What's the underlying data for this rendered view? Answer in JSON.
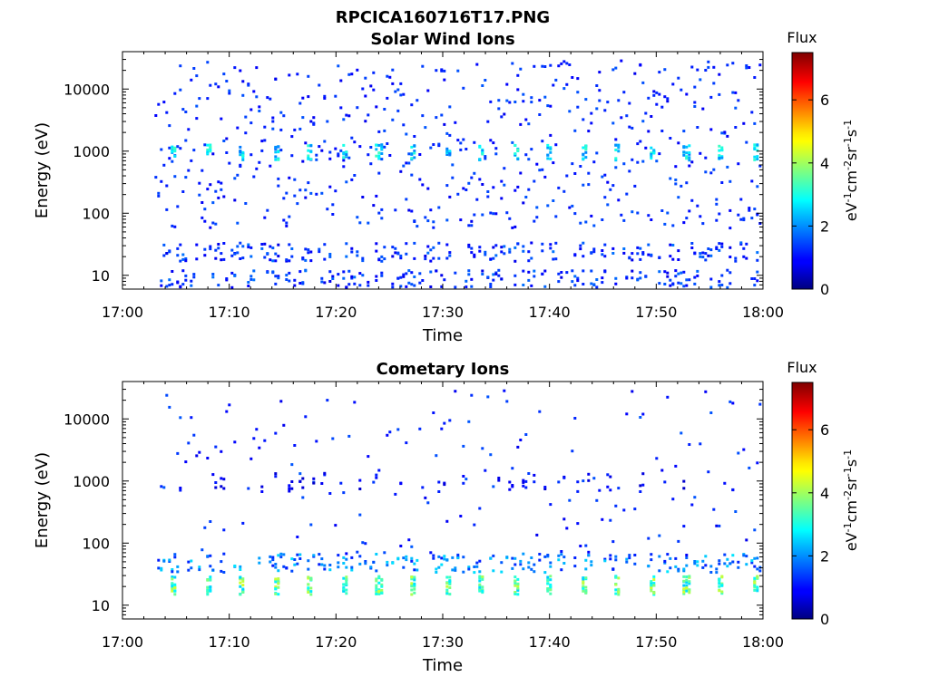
{
  "figure": {
    "title": "RPCICA160716T17.PNG"
  },
  "colors": {
    "background": "#ffffff",
    "axis": "#000000",
    "colormap": "jet"
  },
  "chart_data": [
    {
      "type": "heatmap",
      "title": "Solar Wind Ions",
      "xlabel": "Time",
      "ylabel": "Energy (eV)",
      "x_ticks": [
        "17:00",
        "17:10",
        "17:20",
        "17:30",
        "17:40",
        "17:50",
        "18:00"
      ],
      "x_range_minutes": [
        0,
        60
      ],
      "y_scale": "log",
      "y_range": [
        6,
        40000
      ],
      "y_ticks": [
        10,
        100,
        1000,
        10000
      ],
      "y_tick_labels": [
        "10",
        "100",
        "1000",
        "10000"
      ],
      "data_start_minute": 3,
      "sweep_period_minutes": 3.2,
      "features": [
        {
          "band": "peak",
          "energy_eV": 1000,
          "flux": 3.0
        },
        {
          "band": "low",
          "energy_eV": 25,
          "flux": 1.5
        },
        {
          "band": "low",
          "energy_eV": 9,
          "flux": 1.5
        }
      ],
      "colorbar": {
        "label": "Flux",
        "units": "eV-1cm-2sr-1s-1",
        "range": [
          0,
          7.5
        ],
        "ticks": [
          0,
          2,
          4,
          6
        ],
        "tick_labels": [
          "0",
          "2",
          "4",
          "6"
        ]
      },
      "grid": false
    },
    {
      "type": "heatmap",
      "title": "Cometary Ions",
      "xlabel": "Time",
      "ylabel": "Energy (eV)",
      "x_ticks": [
        "17:00",
        "17:10",
        "17:20",
        "17:30",
        "17:40",
        "17:50",
        "18:00"
      ],
      "x_range_minutes": [
        0,
        60
      ],
      "y_scale": "log",
      "y_range": [
        6,
        40000
      ],
      "y_ticks": [
        10,
        100,
        1000,
        10000
      ],
      "y_tick_labels": [
        "10",
        "100",
        "1000",
        "10000"
      ],
      "data_start_minute": 3,
      "sweep_period_minutes": 3.2,
      "features": [
        {
          "band": "peak",
          "energy_eV": 22,
          "flux": 4.0
        },
        {
          "band": "mid",
          "energy_eV": 50,
          "flux": 2.2
        },
        {
          "band": "high",
          "energy_eV": 1000,
          "flux": 1.0
        }
      ],
      "colorbar": {
        "label": "Flux",
        "units": "eV-1cm-2sr-1s-1",
        "range": [
          0,
          7.5
        ],
        "ticks": [
          0,
          2,
          4,
          6
        ],
        "tick_labels": [
          "0",
          "2",
          "4",
          "6"
        ]
      },
      "grid": false
    }
  ]
}
